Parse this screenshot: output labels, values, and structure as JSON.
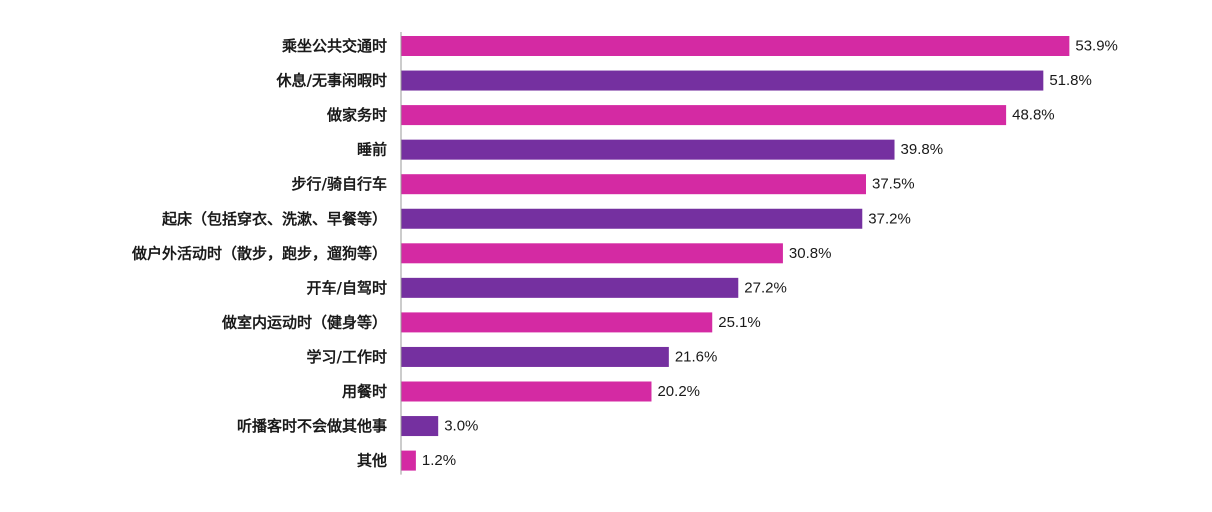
{
  "chart_data": {
    "type": "bar",
    "orientation": "horizontal",
    "categories": [
      "乘坐公共交通时",
      "休息/无事闲暇时",
      "做家务时",
      "睡前",
      "步行/骑自行车",
      "起床（包括穿衣、洗漱、早餐等）",
      "做户外活动时（散步，跑步，遛狗等）",
      "开车/自驾时",
      "做室内运动时（健身等）",
      "学习/工作时",
      "用餐时",
      "听播客时不会做其他事",
      "其他"
    ],
    "values": [
      53.9,
      51.8,
      48.8,
      39.8,
      37.5,
      37.2,
      30.8,
      27.2,
      25.1,
      21.6,
      20.2,
      3.0,
      1.2
    ],
    "value_labels": [
      "53.9%",
      "51.8%",
      "48.8%",
      "39.8%",
      "37.5%",
      "37.2%",
      "30.8%",
      "27.2%",
      "25.1%",
      "21.6%",
      "20.2%",
      "3.0%",
      "1.2%"
    ],
    "unit": "%",
    "title": "",
    "xlabel": "",
    "ylabel": "",
    "xlim": [
      0,
      60
    ],
    "grid": false,
    "legend": "none",
    "colors": {
      "magenta": "#D42AA3",
      "purple": "#7530A0"
    },
    "bar_color_pattern": [
      "magenta",
      "purple"
    ]
  }
}
